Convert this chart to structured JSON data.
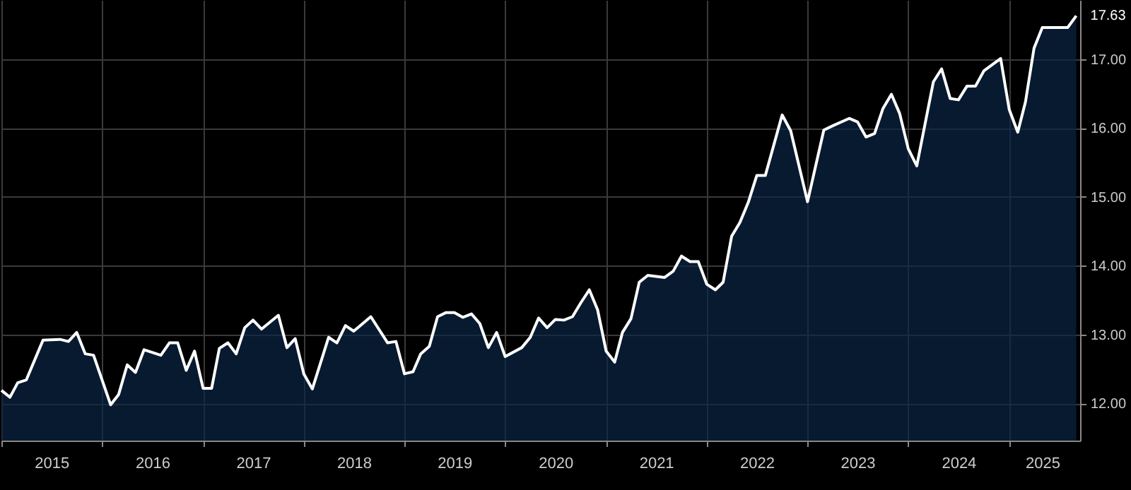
{
  "chart_data": {
    "type": "area",
    "x": [
      "2015-01",
      "2015-02",
      "2015-03",
      "2015-04",
      "2015-06",
      "2015-08",
      "2015-09",
      "2015-10",
      "2015-11",
      "2015-12",
      "2016-02",
      "2016-03",
      "2016-04",
      "2016-05",
      "2016-06",
      "2016-08",
      "2016-09",
      "2016-10",
      "2016-11",
      "2016-12",
      "2017-01",
      "2017-02",
      "2017-03",
      "2017-04",
      "2017-05",
      "2017-06",
      "2017-07",
      "2017-08",
      "2017-10",
      "2017-11",
      "2017-12",
      "2018-01",
      "2018-02",
      "2018-04",
      "2018-05",
      "2018-06",
      "2018-07",
      "2018-09",
      "2018-11",
      "2018-12",
      "2019-01",
      "2019-02",
      "2019-03",
      "2019-04",
      "2019-05",
      "2019-06",
      "2019-07",
      "2019-08",
      "2019-09",
      "2019-10",
      "2019-11",
      "2019-12",
      "2020-01",
      "2020-03",
      "2020-04",
      "2020-05",
      "2020-06",
      "2020-07",
      "2020-08",
      "2020-09",
      "2020-10",
      "2020-11",
      "2020-12",
      "2021-01",
      "2021-02",
      "2021-03",
      "2021-04",
      "2021-05",
      "2021-06",
      "2021-08",
      "2021-09",
      "2021-10",
      "2021-11",
      "2021-12",
      "2022-01",
      "2022-02",
      "2022-03",
      "2022-04",
      "2022-05",
      "2022-06",
      "2022-07",
      "2022-08",
      "2022-10",
      "2022-11",
      "2023-01",
      "2023-03",
      "2023-04",
      "2023-06",
      "2023-07",
      "2023-08",
      "2023-09",
      "2023-10",
      "2023-11",
      "2023-12",
      "2024-01",
      "2024-02",
      "2024-04",
      "2024-05",
      "2024-06",
      "2024-07",
      "2024-08",
      "2024-09",
      "2024-10",
      "2024-12",
      "2025-01",
      "2025-02",
      "2025-03",
      "2025-04",
      "2025-05",
      "2025-08",
      "2025-09"
    ],
    "series": [
      {
        "color": "#0b2545",
        "values": [
          12.19,
          12.09,
          12.3,
          12.34,
          12.92,
          12.93,
          12.9,
          13.03,
          12.72,
          12.7,
          11.98,
          12.13,
          12.56,
          12.45,
          12.78,
          12.7,
          12.88,
          12.88,
          12.48,
          12.76,
          12.22,
          12.22,
          12.8,
          12.88,
          12.72,
          13.1,
          13.21,
          13.08,
          13.28,
          12.81,
          12.94,
          12.43,
          12.21,
          12.96,
          12.88,
          13.13,
          13.05,
          13.26,
          12.88,
          12.9,
          12.43,
          12.46,
          12.72,
          12.83,
          13.26,
          13.32,
          13.32,
          13.25,
          13.3,
          13.16,
          12.81,
          13.03,
          12.68,
          12.81,
          12.96,
          13.24,
          13.1,
          13.22,
          13.21,
          13.26,
          13.46,
          13.65,
          13.36,
          12.76,
          12.6,
          13.03,
          13.23,
          13.76,
          13.86,
          13.83,
          13.92,
          14.14,
          14.06,
          14.06,
          13.73,
          13.65,
          13.76,
          14.43,
          14.63,
          14.93,
          15.31,
          15.31,
          16.19,
          15.96,
          14.93,
          15.97,
          16.03,
          16.14,
          16.09,
          15.87,
          15.92,
          16.28,
          16.49,
          16.21,
          15.7,
          15.45,
          16.67,
          16.86,
          16.43,
          16.41,
          16.61,
          16.61,
          16.83,
          17.01,
          16.27,
          15.94,
          16.38,
          17.16,
          17.46,
          17.46,
          17.63
        ]
      }
    ],
    "xlim": [
      "2015-01",
      "2025-09-15"
    ],
    "xticks": [
      {
        "value": "2015-01",
        "label": null
      },
      {
        "value": "2015-07",
        "label": "2015"
      },
      {
        "value": "2016-01",
        "label": null
      },
      {
        "value": "2016-07",
        "label": "2016"
      },
      {
        "value": "2017-01",
        "label": null
      },
      {
        "value": "2017-07",
        "label": "2017"
      },
      {
        "value": "2018-01",
        "label": null
      },
      {
        "value": "2018-07",
        "label": "2018"
      },
      {
        "value": "2019-01",
        "label": null
      },
      {
        "value": "2019-07",
        "label": "2019"
      },
      {
        "value": "2020-01",
        "label": null
      },
      {
        "value": "2020-07",
        "label": "2020"
      },
      {
        "value": "2021-01",
        "label": null
      },
      {
        "value": "2021-07",
        "label": "2021"
      },
      {
        "value": "2022-01",
        "label": null
      },
      {
        "value": "2022-07",
        "label": "2022"
      },
      {
        "value": "2023-01",
        "label": null
      },
      {
        "value": "2023-07",
        "label": "2023"
      },
      {
        "value": "2024-01",
        "label": null
      },
      {
        "value": "2024-07",
        "label": "2024"
      },
      {
        "value": "2025-01",
        "label": null
      },
      {
        "value": "2025-05",
        "label": "2025"
      }
    ],
    "ylim": [
      11.46,
      17.86
    ],
    "yticks": [
      {
        "value": 12,
        "label": "12.00"
      },
      {
        "value": 13,
        "label": "13.00"
      },
      {
        "value": 14,
        "label": "14.00"
      },
      {
        "value": 15,
        "label": "15.00"
      },
      {
        "value": 16,
        "label": "16.00"
      },
      {
        "value": 17,
        "label": "17.00"
      }
    ],
    "grid": true,
    "annotations": [
      {
        "text": "17.63",
        "x": "2025-09",
        "y": 17.63
      }
    ]
  }
}
